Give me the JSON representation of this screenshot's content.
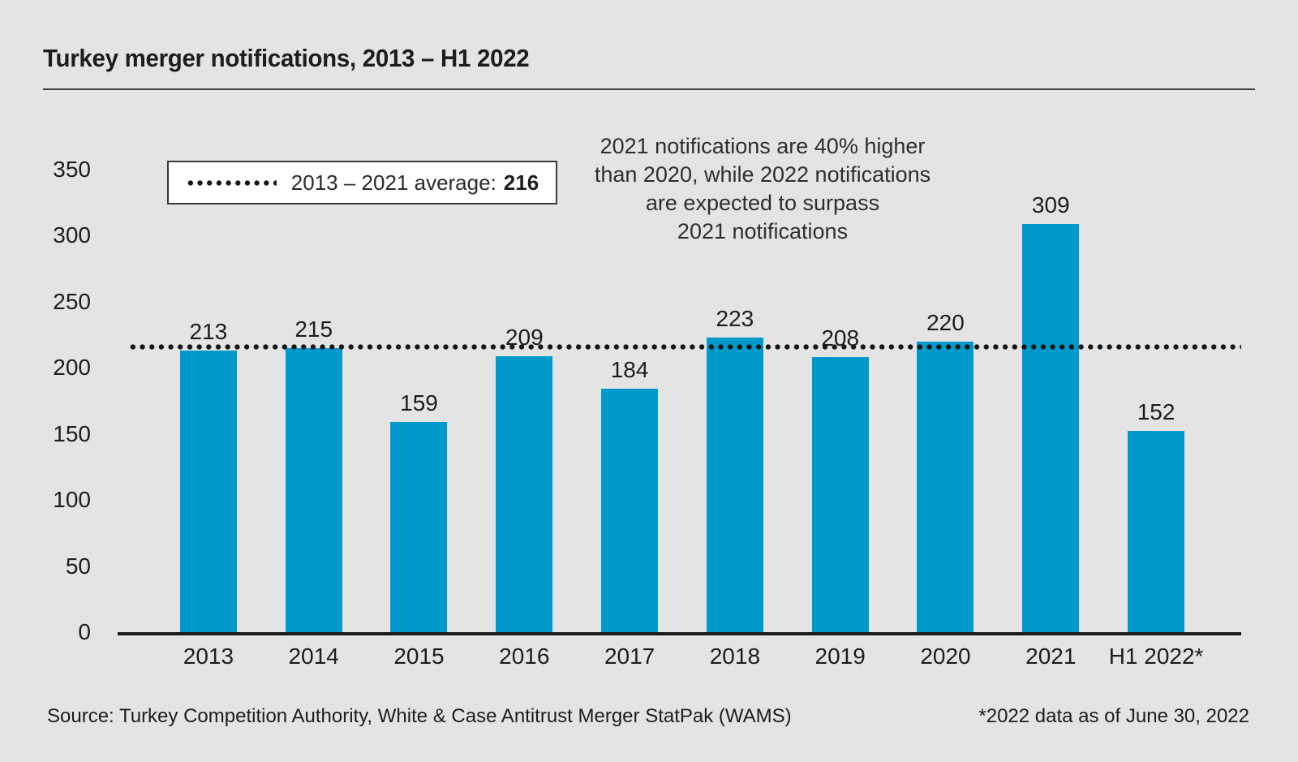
{
  "page": {
    "background": "#e4e4e4"
  },
  "header": {
    "title": "Turkey merger notifications, 2013 – H1 2022"
  },
  "legend": {
    "label": "2013 – 2021 average:",
    "value": "216"
  },
  "annotation": {
    "lines": [
      "2021 notifications are 40% higher",
      "than 2020, while 2022 notifications",
      "are expected to surpass",
      "2021 notifications"
    ]
  },
  "chart_data": {
    "type": "bar",
    "title": "Turkey merger notifications, 2013 – H1 2022",
    "categories": [
      "2013",
      "2014",
      "2015",
      "2016",
      "2017",
      "2018",
      "2019",
      "2020",
      "2021",
      "H1 2022*"
    ],
    "values": [
      213,
      215,
      159,
      209,
      184,
      223,
      208,
      220,
      309,
      152
    ],
    "average_line": {
      "label": "2013 – 2021 average",
      "value": 216
    },
    "xlabel": "",
    "ylabel": "",
    "ylim": [
      0,
      350
    ],
    "yticks": [
      0,
      50,
      100,
      150,
      200,
      250,
      300,
      350
    ],
    "grid": false,
    "value_labels": true,
    "legend_position": "top-left",
    "bar_color": "#0099cb",
    "axis_color": "#1a1a1a",
    "dotted_line_color": "#161616"
  },
  "footer": {
    "source": "Source: Turkey Competition Authority, White & Case Antitrust Merger StatPak (WAMS)",
    "footnote": "*2022 data as of June 30, 2022"
  }
}
